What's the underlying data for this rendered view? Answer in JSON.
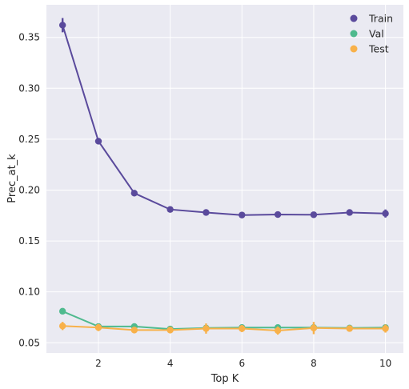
{
  "chart_data": {
    "type": "line",
    "title": "",
    "xlabel": "Top K",
    "ylabel": "Prec_at_k",
    "xlim": [
      0.55,
      10.5
    ],
    "ylim": [
      0.04,
      0.382
    ],
    "xticks": [
      2,
      4,
      6,
      8,
      10
    ],
    "yticks": [
      0.05,
      0.1,
      0.15,
      0.2,
      0.25,
      0.3,
      0.35
    ],
    "ytick_labels": [
      "0.05",
      "0.10",
      "0.15",
      "0.20",
      "0.25",
      "0.30",
      "0.35"
    ],
    "grid": true,
    "background": "#EAEAF2",
    "legend_position": "top-right",
    "x": [
      1,
      2,
      3,
      4,
      5,
      6,
      7,
      8,
      9,
      10
    ],
    "series": [
      {
        "name": "Train",
        "color": "#5A4A9C",
        "values": [
          0.362,
          0.248,
          0.197,
          0.181,
          0.178,
          0.1755,
          0.176,
          0.1758,
          0.178,
          0.177
        ],
        "errors": [
          0.007,
          0.003,
          0.003,
          0.0025,
          0.0015,
          0.003,
          0.003,
          0.0015,
          0.0015,
          0.004
        ]
      },
      {
        "name": "Val",
        "color": "#4FBA8E",
        "values": [
          0.081,
          0.066,
          0.066,
          0.0635,
          0.0645,
          0.065,
          0.065,
          0.065,
          0.0645,
          0.065
        ],
        "errors": [
          0.001,
          0.002,
          0.001,
          0.001,
          0.001,
          0.001,
          0.001,
          0.001,
          0.001,
          0.001
        ]
      },
      {
        "name": "Test",
        "color": "#F8B14A",
        "values": [
          0.0665,
          0.065,
          0.0625,
          0.0625,
          0.064,
          0.064,
          0.062,
          0.0645,
          0.064,
          0.064
        ],
        "errors": [
          0.004,
          0.0035,
          0.0025,
          0.003,
          0.005,
          0.0035,
          0.004,
          0.006,
          0.003,
          0.004
        ]
      }
    ]
  }
}
